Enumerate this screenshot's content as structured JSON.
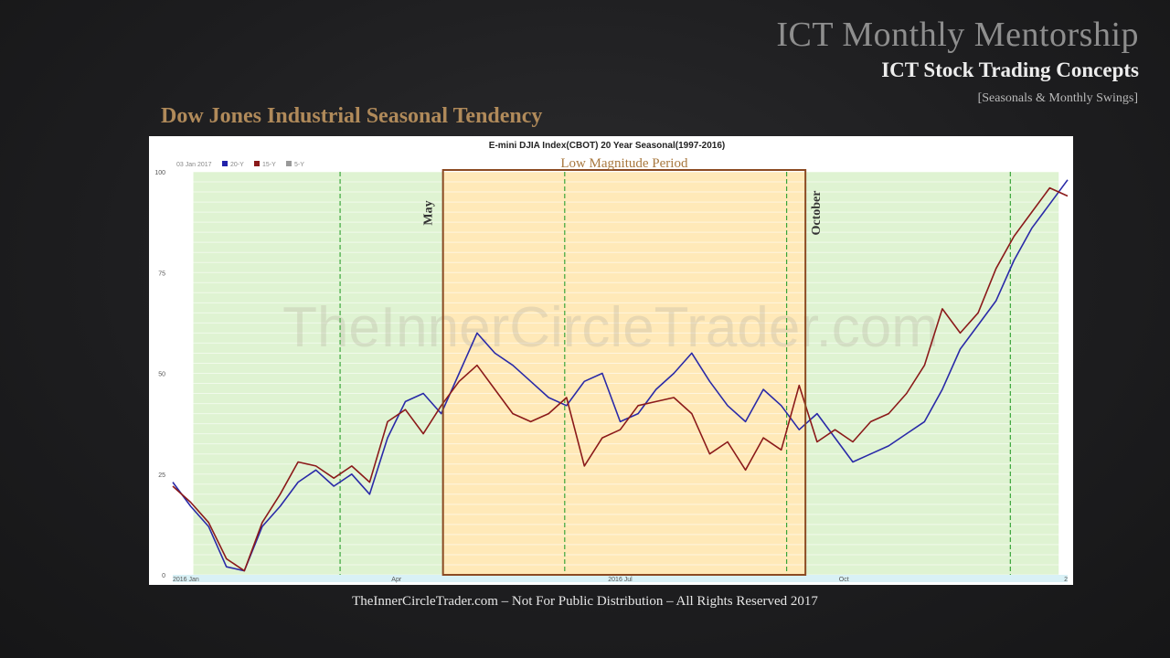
{
  "slide": {
    "title": "ICT Monthly Mentorship",
    "subtitle": "ICT Stock Trading Concepts",
    "tag": "[Seasonals & Monthly Swings]",
    "section_heading": "Dow Jones Industrial Seasonal Tendency",
    "footer": "TheInnerCircleTrader.com – Not For Public Distribution – All Rights Reserved 2017"
  },
  "colors": {
    "background": "#1d1d1f",
    "accent_gold": "#b08a5a",
    "green_zone": "#dff3d2",
    "yellow_zone": "#ffe9b8",
    "box_border": "#8b4a22",
    "series_20y": "#2a2aa8",
    "series_15y": "#8b1a1a",
    "series_5y": "#999999"
  },
  "chart_data": {
    "type": "line",
    "title": "E-mini DJIA Index(CBOT) 20 Year Seasonal(1997-2016)",
    "legend_date": "03 Jan 2017",
    "watermark": "TheInnerCircleTrader.com",
    "ylim": [
      0,
      100
    ],
    "yticks": [
      "0",
      "25",
      "50",
      "75",
      "100"
    ],
    "xlim": [
      0,
      1
    ],
    "xticks": [
      {
        "label": "2016 Jan",
        "x": 0.0
      },
      {
        "label": "Apr",
        "x": 0.25
      },
      {
        "label": "2016 Jul",
        "x": 0.5
      },
      {
        "label": "Oct",
        "x": 0.75
      },
      {
        "label": "2",
        "x": 1.0
      }
    ],
    "legend": [
      {
        "name": "20-Y",
        "color": "#2222aa"
      },
      {
        "name": "15-Y",
        "color": "#8b1a1a"
      },
      {
        "name": "5-Y",
        "color": "#999999"
      }
    ],
    "monthly_markers": [
      0.187,
      0.438,
      0.686,
      0.936
    ],
    "highlight_zones": [
      {
        "type": "green",
        "start": 0.023,
        "end": 0.302
      },
      {
        "type": "yellow",
        "start": 0.302,
        "end": 0.707
      },
      {
        "type": "green",
        "start": 0.707,
        "end": 0.99
      }
    ],
    "annotations": {
      "box_label": "Low Magnitude Period",
      "start_label": "May",
      "end_label": "October"
    },
    "series": [
      {
        "name": "20-Y",
        "color": "#2a2aa8",
        "x": [
          0.0,
          0.02,
          0.04,
          0.06,
          0.08,
          0.1,
          0.12,
          0.14,
          0.16,
          0.18,
          0.2,
          0.22,
          0.24,
          0.26,
          0.28,
          0.3,
          0.32,
          0.34,
          0.36,
          0.38,
          0.4,
          0.42,
          0.44,
          0.46,
          0.48,
          0.5,
          0.52,
          0.54,
          0.56,
          0.58,
          0.6,
          0.62,
          0.64,
          0.66,
          0.68,
          0.7,
          0.72,
          0.74,
          0.76,
          0.78,
          0.8,
          0.82,
          0.84,
          0.86,
          0.88,
          0.9,
          0.92,
          0.94,
          0.96,
          0.98,
          1.0
        ],
        "y": [
          23,
          17,
          12,
          2,
          1,
          12,
          17,
          23,
          26,
          22,
          25,
          20,
          34,
          43,
          45,
          40,
          50,
          60,
          55,
          52,
          48,
          44,
          42,
          48,
          50,
          38,
          40,
          46,
          50,
          55,
          48,
          42,
          38,
          46,
          42,
          36,
          40,
          34,
          28,
          30,
          32,
          35,
          38,
          46,
          56,
          62,
          68,
          78,
          86,
          92,
          98
        ]
      },
      {
        "name": "15-Y",
        "color": "#8b1a1a",
        "x": [
          0.0,
          0.02,
          0.04,
          0.06,
          0.08,
          0.1,
          0.12,
          0.14,
          0.16,
          0.18,
          0.2,
          0.22,
          0.24,
          0.26,
          0.28,
          0.3,
          0.32,
          0.34,
          0.36,
          0.38,
          0.4,
          0.42,
          0.44,
          0.46,
          0.48,
          0.5,
          0.52,
          0.54,
          0.56,
          0.58,
          0.6,
          0.62,
          0.64,
          0.66,
          0.68,
          0.7,
          0.72,
          0.74,
          0.76,
          0.78,
          0.8,
          0.82,
          0.84,
          0.86,
          0.88,
          0.9,
          0.92,
          0.94,
          0.96,
          0.98,
          1.0
        ],
        "y": [
          22,
          18,
          13,
          4,
          1,
          13,
          20,
          28,
          27,
          24,
          27,
          23,
          38,
          41,
          35,
          42,
          48,
          52,
          46,
          40,
          38,
          40,
          44,
          27,
          34,
          36,
          42,
          43,
          44,
          40,
          30,
          33,
          26,
          34,
          31,
          47,
          33,
          36,
          33,
          38,
          40,
          45,
          52,
          66,
          60,
          65,
          76,
          84,
          90,
          96,
          94
        ]
      },
      {
        "name": "5-Y",
        "color": "#999999",
        "x": [],
        "y": []
      }
    ]
  }
}
